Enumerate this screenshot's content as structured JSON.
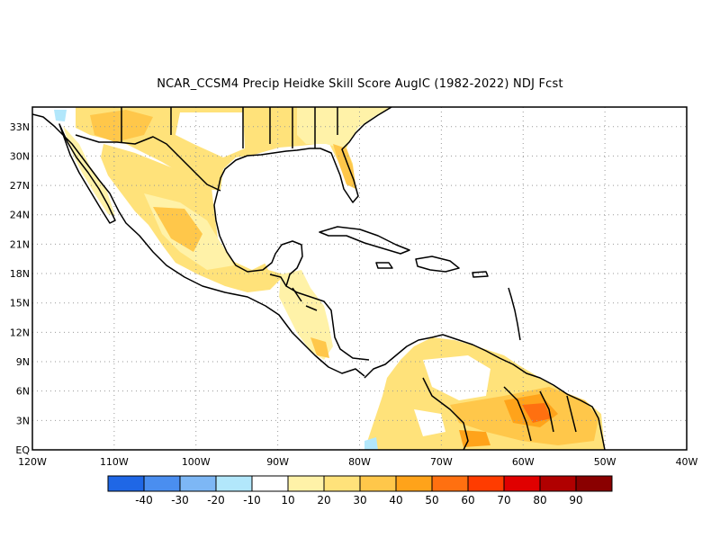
{
  "map": {
    "title": "NCAR_CCSM4 Precip Heidke Skill Score AugIC (1982-2022) NDJ Fcst",
    "lon_labels": [
      "120W",
      "110W",
      "100W",
      "90W",
      "80W",
      "70W",
      "60W",
      "50W",
      "40W"
    ],
    "lat_labels": [
      "EQ",
      "3N",
      "6N",
      "9N",
      "12N",
      "15N",
      "18N",
      "21N",
      "24N",
      "27N",
      "30N",
      "33N"
    ],
    "lon_range": [
      -120,
      -40
    ],
    "lat_range": [
      0,
      35
    ],
    "grid": "dotted",
    "land_outline_color": "#000000"
  },
  "colorbar": {
    "labels": [
      "-40",
      "-30",
      "-20",
      "-10",
      "10",
      "20",
      "30",
      "40",
      "50",
      "60",
      "70",
      "80",
      "90"
    ],
    "colors": [
      "#1f67e6",
      "#4a8ef0",
      "#7db7f5",
      "#b2e7fb",
      "#ffffff",
      "#fff2a8",
      "#ffe27a",
      "#ffc74a",
      "#ffa31a",
      "#ff7010",
      "#ff3c00",
      "#e00000",
      "#b00000",
      "#8a0000"
    ]
  }
}
